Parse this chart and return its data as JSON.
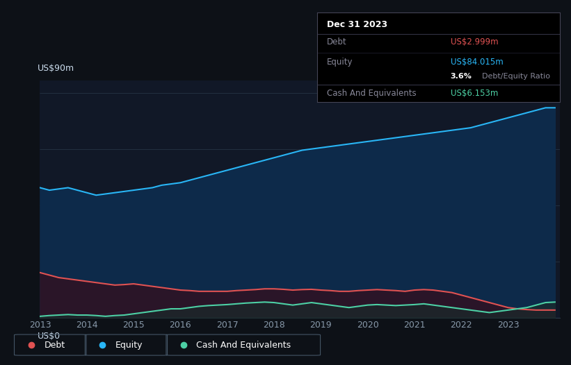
{
  "bg_color": "#0d1117",
  "plot_bg_color": "#111827",
  "tooltip": {
    "date": "Dec 31 2023",
    "debt_label": "Debt",
    "debt_value": "US$2.999m",
    "equity_label": "Equity",
    "equity_value": "US$84.015m",
    "ratio_value": "3.6%",
    "ratio_label": "Debt/Equity Ratio",
    "cash_label": "Cash And Equivalents",
    "cash_value": "US$6.153m"
  },
  "ylabel_top": "US$90m",
  "ylabel_bottom": "US$0",
  "debt_color": "#e05252",
  "equity_color": "#29b6f6",
  "cash_color": "#4dd0a5",
  "equity_fill_color": "#0d2a4a",
  "debt_fill_color": "#2a1528",
  "cash_fill_color": "#1a2a2a",
  "equity_data": {
    "x": [
      2013.0,
      2013.2,
      2013.4,
      2013.6,
      2013.8,
      2014.0,
      2014.2,
      2014.4,
      2014.6,
      2014.8,
      2015.0,
      2015.2,
      2015.4,
      2015.6,
      2015.8,
      2016.0,
      2016.2,
      2016.4,
      2016.6,
      2016.8,
      2017.0,
      2017.2,
      2017.4,
      2017.6,
      2017.8,
      2018.0,
      2018.2,
      2018.4,
      2018.6,
      2018.8,
      2019.0,
      2019.2,
      2019.4,
      2019.6,
      2019.8,
      2020.0,
      2020.2,
      2020.4,
      2020.6,
      2020.8,
      2021.0,
      2021.2,
      2021.4,
      2021.6,
      2021.8,
      2022.0,
      2022.2,
      2022.4,
      2022.6,
      2022.8,
      2023.0,
      2023.2,
      2023.4,
      2023.6,
      2023.8,
      2024.0
    ],
    "y": [
      52,
      51,
      51.5,
      52,
      51,
      50,
      49,
      49.5,
      50,
      50.5,
      51,
      51.5,
      52,
      53,
      53.5,
      54,
      55,
      56,
      57,
      58,
      59,
      60,
      61,
      62,
      63,
      64,
      65,
      66,
      67,
      67.5,
      68,
      68.5,
      69,
      69.5,
      70,
      70.5,
      71,
      71.5,
      72,
      72.5,
      73,
      73.5,
      74,
      74.5,
      75,
      75.5,
      76,
      77,
      78,
      79,
      80,
      81,
      82,
      83,
      84,
      84
    ]
  },
  "debt_data": {
    "x": [
      2013.0,
      2013.2,
      2013.4,
      2013.6,
      2013.8,
      2014.0,
      2014.2,
      2014.4,
      2014.6,
      2014.8,
      2015.0,
      2015.2,
      2015.4,
      2015.6,
      2015.8,
      2016.0,
      2016.2,
      2016.4,
      2016.6,
      2016.8,
      2017.0,
      2017.2,
      2017.4,
      2017.6,
      2017.8,
      2018.0,
      2018.2,
      2018.4,
      2018.6,
      2018.8,
      2019.0,
      2019.2,
      2019.4,
      2019.6,
      2019.8,
      2020.0,
      2020.2,
      2020.4,
      2020.6,
      2020.8,
      2021.0,
      2021.2,
      2021.4,
      2021.6,
      2021.8,
      2022.0,
      2022.2,
      2022.4,
      2022.6,
      2022.8,
      2023.0,
      2023.2,
      2023.4,
      2023.6,
      2023.8,
      2024.0
    ],
    "y": [
      18,
      17,
      16,
      15.5,
      15,
      14.5,
      14,
      13.5,
      13,
      13.2,
      13.5,
      13,
      12.5,
      12,
      11.5,
      11,
      10.8,
      10.5,
      10.5,
      10.5,
      10.5,
      10.8,
      11,
      11.2,
      11.5,
      11.5,
      11.3,
      11,
      11.2,
      11.3,
      11,
      10.8,
      10.5,
      10.5,
      10.8,
      11,
      11.2,
      11,
      10.8,
      10.5,
      11,
      11.2,
      11,
      10.5,
      10,
      9,
      8,
      7,
      6,
      5,
      4,
      3.5,
      3.2,
      3,
      3,
      3
    ]
  },
  "cash_data": {
    "x": [
      2013.0,
      2013.2,
      2013.4,
      2013.6,
      2013.8,
      2014.0,
      2014.2,
      2014.4,
      2014.6,
      2014.8,
      2015.0,
      2015.2,
      2015.4,
      2015.6,
      2015.8,
      2016.0,
      2016.2,
      2016.4,
      2016.6,
      2016.8,
      2017.0,
      2017.2,
      2017.4,
      2017.6,
      2017.8,
      2018.0,
      2018.2,
      2018.4,
      2018.6,
      2018.8,
      2019.0,
      2019.2,
      2019.4,
      2019.6,
      2019.8,
      2020.0,
      2020.2,
      2020.4,
      2020.6,
      2020.8,
      2021.0,
      2021.2,
      2021.4,
      2021.6,
      2021.8,
      2022.0,
      2022.2,
      2022.4,
      2022.6,
      2022.8,
      2023.0,
      2023.2,
      2023.4,
      2023.6,
      2023.8,
      2024.0
    ],
    "y": [
      0.5,
      0.8,
      1.0,
      1.2,
      1.0,
      1.0,
      0.8,
      0.5,
      0.8,
      1.0,
      1.5,
      2.0,
      2.5,
      3.0,
      3.5,
      3.5,
      4.0,
      4.5,
      4.8,
      5.0,
      5.2,
      5.5,
      5.8,
      6.0,
      6.2,
      6.0,
      5.5,
      5.0,
      5.5,
      6.0,
      5.5,
      5.0,
      4.5,
      4.0,
      4.5,
      5.0,
      5.2,
      5.0,
      4.8,
      5.0,
      5.2,
      5.5,
      5.0,
      4.5,
      4.0,
      3.5,
      3.0,
      2.5,
      2.0,
      2.5,
      3.0,
      3.5,
      4.0,
      5.0,
      6.0,
      6.2
    ]
  },
  "xlim": [
    2013.0,
    2024.1
  ],
  "ylim": [
    0,
    95
  ],
  "xticks": [
    2013,
    2014,
    2015,
    2016,
    2017,
    2018,
    2019,
    2020,
    2021,
    2022,
    2023
  ],
  "xticklabels": [
    "2013",
    "2014",
    "2015",
    "2016",
    "2017",
    "2018",
    "2019",
    "2020",
    "2021",
    "2022",
    "2023"
  ],
  "grid_color": "#2a3a4a",
  "grid_vals": [
    0,
    22.5,
    45,
    67.5,
    90
  ],
  "legend_labels": [
    "Debt",
    "Equity",
    "Cash And Equivalents"
  ],
  "legend_colors": [
    "#e05252",
    "#29b6f6",
    "#4dd0a5"
  ]
}
